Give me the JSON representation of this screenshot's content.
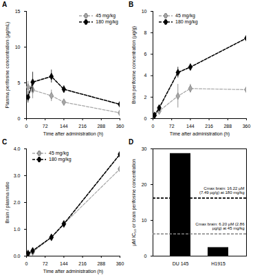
{
  "chart_data": [
    {
      "type": "line",
      "title": "A",
      "x_label": "Time after administration (h)",
      "y_label": "Plasma perifosine concentration (µg/mL)",
      "x": [
        6,
        24,
        96,
        144,
        360
      ],
      "xlim": [
        0,
        360
      ],
      "xticks": [
        0,
        72,
        144,
        216,
        288,
        360
      ],
      "ylim": [
        0,
        15
      ],
      "yticks": [
        0,
        5,
        10,
        15
      ],
      "legend": "top-right",
      "series": [
        {
          "name": "45 mg/kg",
          "color": "#a6a6a6",
          "marker": "diamond",
          "line_style": "dashed",
          "values": [
            4.4,
            4.0,
            3.2,
            2.3,
            0.8
          ],
          "errors": [
            0.8,
            1.2,
            0.8,
            0.4,
            0.5
          ]
        },
        {
          "name": "180 mg/kg",
          "color": "#000000",
          "marker": "diamond",
          "line_style": "dashed",
          "values": [
            3.0,
            5.1,
            5.9,
            4.1,
            2.0
          ],
          "errors": [
            0.8,
            1.4,
            0.9,
            0.5,
            0.4
          ]
        }
      ]
    },
    {
      "type": "line",
      "title": "B",
      "x_label": "Time after administration (h)",
      "y_label": "Brain perifosine concentration (µg/g)",
      "x": [
        6,
        24,
        96,
        144,
        360
      ],
      "xlim": [
        0,
        360
      ],
      "xticks": [
        0,
        72,
        144,
        216,
        288,
        360
      ],
      "ylim": [
        0,
        10
      ],
      "yticks": [
        0,
        2,
        4,
        6,
        8,
        10
      ],
      "legend": "top-left",
      "series": [
        {
          "name": "45 mg/kg",
          "color": "#a6a6a6",
          "marker": "diamond",
          "line_style": "dashed",
          "values": [
            0.3,
            0.7,
            2.1,
            2.8,
            2.7
          ],
          "errors": [
            0.1,
            0.2,
            1.1,
            0.4,
            0.3
          ]
        },
        {
          "name": "180 mg/kg",
          "color": "#000000",
          "marker": "diamond",
          "line_style": "dashed",
          "values": [
            0.3,
            1.0,
            4.3,
            4.8,
            7.5
          ],
          "errors": [
            0.1,
            0.2,
            0.5,
            0.3,
            0.8
          ]
        }
      ]
    },
    {
      "type": "line",
      "title": "C",
      "x_label": "Time after administration (h)",
      "y_label": "Brain / plasma ratio",
      "x": [
        6,
        24,
        96,
        144,
        360
      ],
      "xlim": [
        0,
        360
      ],
      "xticks": [
        0,
        72,
        144,
        216,
        288,
        360
      ],
      "ylim": [
        0,
        4
      ],
      "yticks": [
        0,
        1,
        2,
        3,
        4
      ],
      "legend": "top-left",
      "series": [
        {
          "name": "45 mg/kg",
          "color": "#a6a6a6",
          "marker": "diamond",
          "line_style": "dashed",
          "values": [
            0.07,
            0.15,
            0.7,
            1.2,
            3.25
          ]
        },
        {
          "name": "180 mg/kg",
          "color": "#000000",
          "marker": "diamond",
          "line_style": "dashed",
          "values": [
            0.1,
            0.2,
            0.7,
            1.2,
            3.8
          ]
        }
      ]
    },
    {
      "type": "bar",
      "title": "D",
      "y_label": "µM IC₅₀ or brain perifosine concentration",
      "categories": [
        "DU 145",
        "H1915"
      ],
      "values": [
        28.7,
        2.4
      ],
      "color": "#000000",
      "ylim": [
        0,
        30
      ],
      "yticks": [
        0,
        10,
        20,
        30
      ],
      "reference_lines": [
        {
          "value": 16.22,
          "label": "Cmax brain: 16.22 µM (7.49 µg/g) at 180 mg/kg",
          "color": "#000000",
          "line_style": "dashed"
        },
        {
          "value": 6.2,
          "label": "Cmax brain: 6.20 µM (2.86 µg/g) at 45 mg/kg",
          "color": "#808080",
          "line_style": "dashed"
        }
      ]
    }
  ]
}
